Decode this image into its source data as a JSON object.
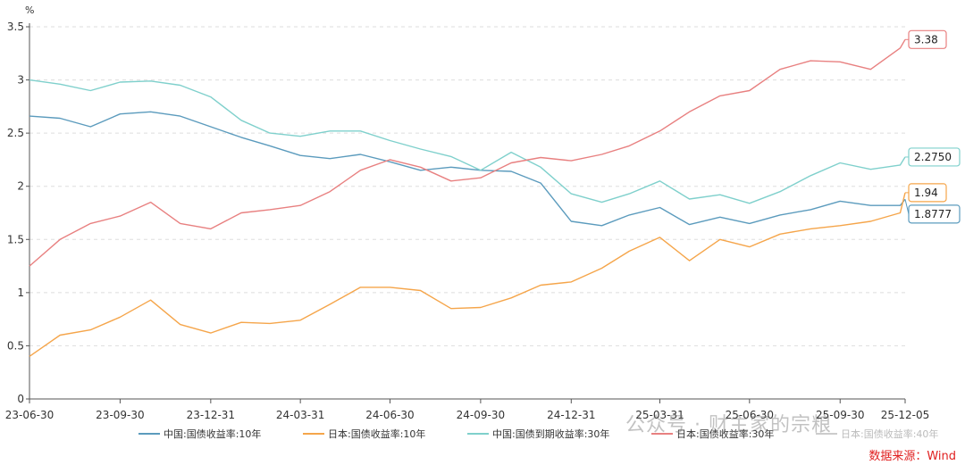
{
  "chart_data": {
    "type": "line",
    "title": "",
    "unit_label": "%",
    "xlabel": "",
    "ylabel": "",
    "ylim": [
      0,
      3.5
    ],
    "yticks": [
      "0",
      "0.5",
      "1",
      "1.5",
      "2",
      "2.5",
      "3",
      "3.5"
    ],
    "x_tick_labels": [
      "23-06-30",
      "23-09-30",
      "23-12-31",
      "24-03-31",
      "24-06-30",
      "24-09-30",
      "24-12-31",
      "25-03-31",
      "25-06-30",
      "25-09-30",
      "25-12-05"
    ],
    "grid": "horizontal-dashed",
    "legend_position": "bottom",
    "series": [
      {
        "name": "中国:国债收益率:10年",
        "color": "#5b9bbd",
        "end_label": "1.8777",
        "points": [
          [
            "23-06-30",
            2.66
          ],
          [
            "23-07-31",
            2.64
          ],
          [
            "23-08-31",
            2.56
          ],
          [
            "23-09-30",
            2.68
          ],
          [
            "23-10-31",
            2.7
          ],
          [
            "23-11-30",
            2.66
          ],
          [
            "23-12-31",
            2.56
          ],
          [
            "24-01-31",
            2.46
          ],
          [
            "24-02-29",
            2.38
          ],
          [
            "24-03-31",
            2.29
          ],
          [
            "24-04-30",
            2.26
          ],
          [
            "24-05-31",
            2.3
          ],
          [
            "24-06-30",
            2.23
          ],
          [
            "24-07-31",
            2.15
          ],
          [
            "24-08-31",
            2.18
          ],
          [
            "24-09-30",
            2.15
          ],
          [
            "24-10-31",
            2.14
          ],
          [
            "24-11-30",
            2.03
          ],
          [
            "24-12-31",
            1.67
          ],
          [
            "25-01-31",
            1.63
          ],
          [
            "25-02-28",
            1.73
          ],
          [
            "25-03-31",
            1.8
          ],
          [
            "25-04-30",
            1.64
          ],
          [
            "25-05-31",
            1.71
          ],
          [
            "25-06-30",
            1.65
          ],
          [
            "25-07-31",
            1.73
          ],
          [
            "25-08-31",
            1.78
          ],
          [
            "25-09-30",
            1.86
          ],
          [
            "25-10-31",
            1.82
          ],
          [
            "25-11-30",
            1.82
          ],
          [
            "25-12-05",
            1.8777
          ]
        ]
      },
      {
        "name": "日本:国债收益率:10年",
        "color": "#f5a54a",
        "end_label": "1.94",
        "points": [
          [
            "23-06-30",
            0.4
          ],
          [
            "23-07-31",
            0.6
          ],
          [
            "23-08-31",
            0.65
          ],
          [
            "23-09-30",
            0.77
          ],
          [
            "23-10-31",
            0.93
          ],
          [
            "23-11-30",
            0.7
          ],
          [
            "23-12-31",
            0.62
          ],
          [
            "24-01-31",
            0.72
          ],
          [
            "24-02-29",
            0.71
          ],
          [
            "24-03-31",
            0.74
          ],
          [
            "24-04-30",
            0.89
          ],
          [
            "24-05-31",
            1.05
          ],
          [
            "24-06-30",
            1.05
          ],
          [
            "24-07-31",
            1.02
          ],
          [
            "24-08-31",
            0.85
          ],
          [
            "24-09-30",
            0.86
          ],
          [
            "24-10-31",
            0.95
          ],
          [
            "24-11-30",
            1.07
          ],
          [
            "24-12-31",
            1.1
          ],
          [
            "25-01-31",
            1.23
          ],
          [
            "25-02-28",
            1.39
          ],
          [
            "25-03-31",
            1.52
          ],
          [
            "25-04-30",
            1.3
          ],
          [
            "25-05-31",
            1.5
          ],
          [
            "25-06-30",
            1.43
          ],
          [
            "25-07-31",
            1.55
          ],
          [
            "25-08-31",
            1.6
          ],
          [
            "25-09-30",
            1.63
          ],
          [
            "25-10-31",
            1.67
          ],
          [
            "25-11-30",
            1.75
          ],
          [
            "25-12-05",
            1.94
          ]
        ]
      },
      {
        "name": "中国:国债到期收益率:30年",
        "color": "#7fd0cc",
        "end_label": "2.2750",
        "points": [
          [
            "23-06-30",
            3.0
          ],
          [
            "23-07-31",
            2.96
          ],
          [
            "23-08-31",
            2.9
          ],
          [
            "23-09-30",
            2.98
          ],
          [
            "23-10-31",
            2.99
          ],
          [
            "23-11-30",
            2.95
          ],
          [
            "23-12-31",
            2.84
          ],
          [
            "24-01-31",
            2.62
          ],
          [
            "24-02-29",
            2.5
          ],
          [
            "24-03-31",
            2.47
          ],
          [
            "24-04-30",
            2.52
          ],
          [
            "24-05-31",
            2.52
          ],
          [
            "24-06-30",
            2.43
          ],
          [
            "24-07-31",
            2.35
          ],
          [
            "24-08-31",
            2.28
          ],
          [
            "24-09-30",
            2.15
          ],
          [
            "24-10-31",
            2.32
          ],
          [
            "24-11-30",
            2.18
          ],
          [
            "24-12-31",
            1.93
          ],
          [
            "25-01-31",
            1.85
          ],
          [
            "25-02-28",
            1.93
          ],
          [
            "25-03-31",
            2.05
          ],
          [
            "25-04-30",
            1.88
          ],
          [
            "25-05-31",
            1.92
          ],
          [
            "25-06-30",
            1.84
          ],
          [
            "25-07-31",
            1.95
          ],
          [
            "25-08-31",
            2.1
          ],
          [
            "25-09-30",
            2.22
          ],
          [
            "25-10-31",
            2.16
          ],
          [
            "25-11-30",
            2.2
          ],
          [
            "25-12-05",
            2.275
          ]
        ]
      },
      {
        "name": "日本:国债收益率:30年",
        "color": "#e88080",
        "end_label": "3.38",
        "points": [
          [
            "23-06-30",
            1.25
          ],
          [
            "23-07-31",
            1.5
          ],
          [
            "23-08-31",
            1.65
          ],
          [
            "23-09-30",
            1.72
          ],
          [
            "23-10-31",
            1.85
          ],
          [
            "23-11-30",
            1.65
          ],
          [
            "23-12-31",
            1.6
          ],
          [
            "24-01-31",
            1.75
          ],
          [
            "24-02-29",
            1.78
          ],
          [
            "24-03-31",
            1.82
          ],
          [
            "24-04-30",
            1.95
          ],
          [
            "24-05-31",
            2.15
          ],
          [
            "24-06-30",
            2.25
          ],
          [
            "24-07-31",
            2.18
          ],
          [
            "24-08-31",
            2.05
          ],
          [
            "24-09-30",
            2.08
          ],
          [
            "24-10-31",
            2.22
          ],
          [
            "24-11-30",
            2.27
          ],
          [
            "24-12-31",
            2.24
          ],
          [
            "25-01-31",
            2.3
          ],
          [
            "25-02-28",
            2.38
          ],
          [
            "25-03-31",
            2.52
          ],
          [
            "25-04-30",
            2.7
          ],
          [
            "25-05-31",
            2.85
          ],
          [
            "25-06-30",
            2.9
          ],
          [
            "25-07-31",
            3.1
          ],
          [
            "25-08-31",
            3.18
          ],
          [
            "25-09-30",
            3.17
          ],
          [
            "25-10-31",
            3.1
          ],
          [
            "25-11-30",
            3.3
          ],
          [
            "25-12-05",
            3.38
          ]
        ]
      }
    ],
    "legend_extra": "日本:国债收益率:40年"
  },
  "source_text": "数据来源：Wind",
  "watermark_text": "公众号 · 财主家的宗粮"
}
